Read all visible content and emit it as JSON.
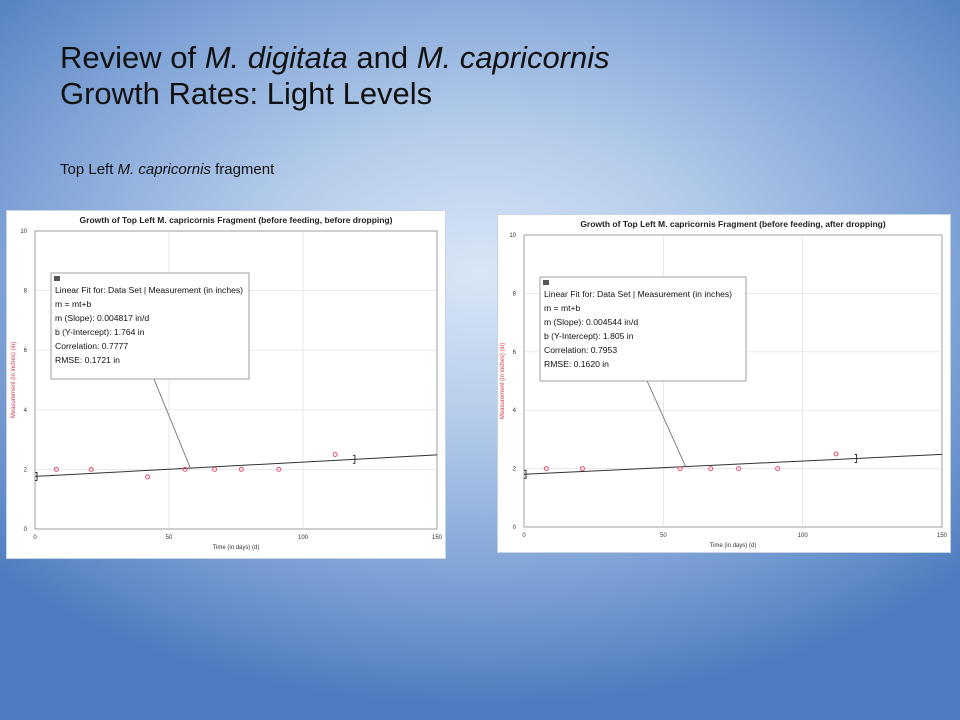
{
  "slide": {
    "title_parts": [
      {
        "text": "Review of ",
        "italic": false
      },
      {
        "text": "M. digitata",
        "italic": true
      },
      {
        "text": " and ",
        "italic": false
      },
      {
        "text": "M. capricornis",
        "italic": true
      }
    ],
    "title_line2": "Growth Rates: Light Levels",
    "subtitle_parts": [
      {
        "text": "Top Left ",
        "italic": false
      },
      {
        "text": "M. capricornis",
        "italic": true
      },
      {
        "text": " fragment",
        "italic": false
      }
    ]
  },
  "colors": {
    "point": "#e8506a",
    "ylabel": "#d63a4a",
    "fit_line": "#333333",
    "grid": "#dcdcdc"
  },
  "chart_data": [
    {
      "type": "scatter",
      "title": "Growth of Top Left M. capricornis Fragment (before feeding, before dropping)",
      "xlabel": "Time (in days) (d)",
      "ylabel": "Measurement (in inches) (in)",
      "xlim": [
        0,
        150
      ],
      "ylim": [
        0,
        10
      ],
      "xticks": [
        0,
        50,
        100,
        150
      ],
      "yticks": [
        0,
        2,
        4,
        6,
        8,
        10
      ],
      "grid": true,
      "points": [
        {
          "x": 8,
          "y": 2.0
        },
        {
          "x": 21,
          "y": 2.0
        },
        {
          "x": 42,
          "y": 1.75
        },
        {
          "x": 56,
          "y": 2.0
        },
        {
          "x": 67,
          "y": 2.0
        },
        {
          "x": 77,
          "y": 2.0
        },
        {
          "x": 91,
          "y": 2.0
        },
        {
          "x": 112,
          "y": 2.5
        }
      ],
      "fit": {
        "slope": 0.004817,
        "intercept": 1.764
      },
      "fit_callout_anchor": {
        "x": 58,
        "y": 2.04
      },
      "annotation": {
        "icon": "fit-info-icon",
        "lines": [
          "Linear Fit for: Data Set | Measurement (in inches)",
          "m = mt+b",
          "m (Slope): 0.004817 in/d",
          "b (Y-Intercept): 1.764 in",
          "Correlation: 0.7777",
          "RMSE: 0.1721 in"
        ]
      }
    },
    {
      "type": "scatter",
      "title": "Growth of Top Left M. capricornis Fragment (before feeding, after dropping)",
      "xlabel": "Time (in days) (d)",
      "ylabel": "Measurement (in inches) (in)",
      "xlim": [
        0,
        150
      ],
      "ylim": [
        0,
        10
      ],
      "xticks": [
        0,
        50,
        100,
        150
      ],
      "yticks": [
        0,
        2,
        4,
        6,
        8,
        10
      ],
      "grid": true,
      "points": [
        {
          "x": 8,
          "y": 2.0
        },
        {
          "x": 21,
          "y": 2.0
        },
        {
          "x": 56,
          "y": 2.0
        },
        {
          "x": 67,
          "y": 2.0
        },
        {
          "x": 77,
          "y": 2.0
        },
        {
          "x": 91,
          "y": 2.0
        },
        {
          "x": 112,
          "y": 2.5
        }
      ],
      "fit": {
        "slope": 0.004544,
        "intercept": 1.805
      },
      "fit_callout_anchor": {
        "x": 58,
        "y": 2.07
      },
      "annotation": {
        "icon": "fit-info-icon",
        "lines": [
          "Linear Fit for: Data Set | Measurement (in inches)",
          "m = mt+b",
          "m (Slope): 0.004544 in/d",
          "b (Y-Intercept): 1.805 in",
          "Correlation: 0.7953",
          "RMSE: 0.1620 in"
        ]
      }
    }
  ]
}
